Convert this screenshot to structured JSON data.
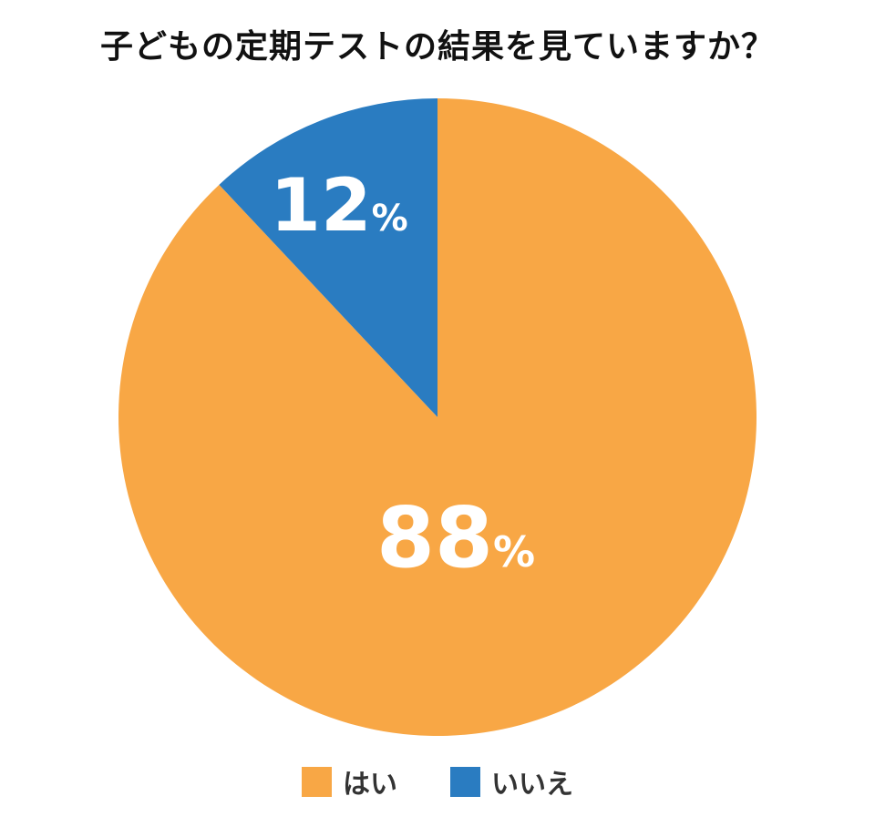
{
  "chart_data": {
    "type": "pie",
    "title": "子どもの定期テストの結果を見ていますか？",
    "unit": "%",
    "slices": [
      {
        "name": "はい",
        "value": 88,
        "color": "#F8A745"
      },
      {
        "name": "いいえ",
        "value": 12,
        "color": "#2A7CC1"
      }
    ],
    "legend": "bottom"
  }
}
